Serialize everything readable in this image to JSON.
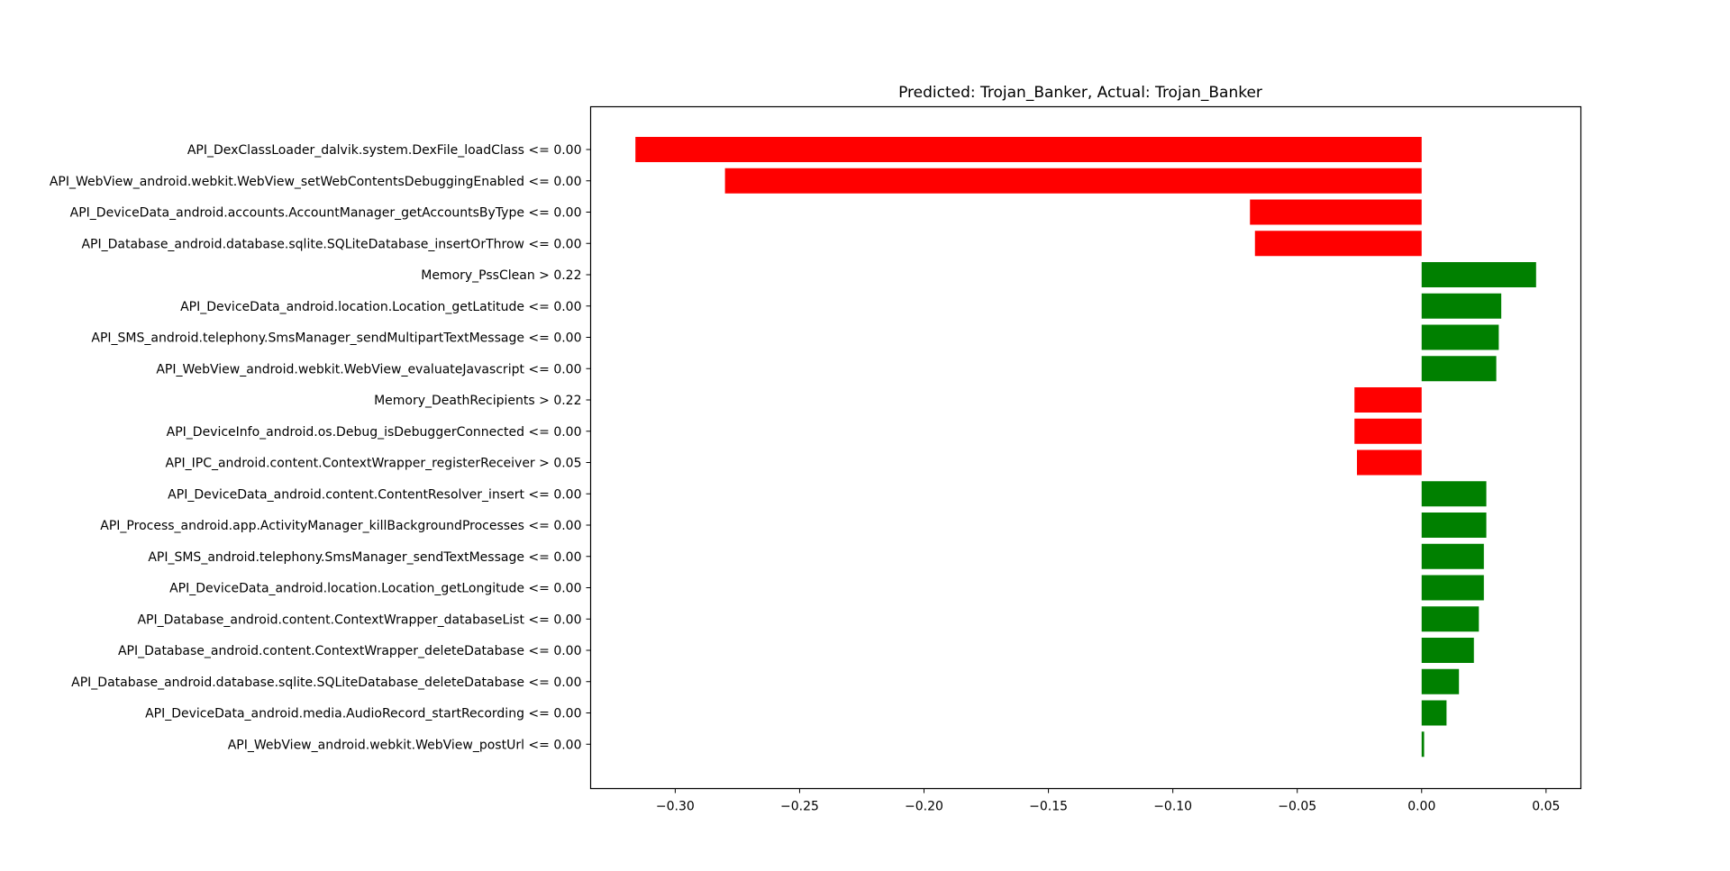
{
  "chart_data": {
    "type": "bar",
    "orientation": "horizontal",
    "title": "Predicted: Trojan_Banker, Actual: Trojan_Banker",
    "xlabel": "",
    "ylabel": "",
    "xlim": [
      -0.334,
      0.064
    ],
    "xticks": [
      -0.3,
      -0.25,
      -0.2,
      -0.15,
      -0.1,
      -0.05,
      0.0,
      0.05
    ],
    "xtick_labels": [
      "−0.30",
      "−0.25",
      "−0.20",
      "−0.15",
      "−0.10",
      "−0.05",
      "0.00",
      "0.05"
    ],
    "grid": false,
    "colors": {
      "positive": "#008000",
      "negative": "#ff0000"
    },
    "categories": [
      "API_DexClassLoader_dalvik.system.DexFile_loadClass <= 0.00",
      "API_WebView_android.webkit.WebView_setWebContentsDebuggingEnabled <= 0.00",
      "API_DeviceData_android.accounts.AccountManager_getAccountsByType <= 0.00",
      "API_Database_android.database.sqlite.SQLiteDatabase_insertOrThrow <= 0.00",
      "Memory_PssClean > 0.22",
      "API_DeviceData_android.location.Location_getLatitude <= 0.00",
      "API_SMS_android.telephony.SmsManager_sendMultipartTextMessage <= 0.00",
      "API_WebView_android.webkit.WebView_evaluateJavascript <= 0.00",
      "Memory_DeathRecipients > 0.22",
      "API_DeviceInfo_android.os.Debug_isDebuggerConnected <= 0.00",
      "API_IPC_android.content.ContextWrapper_registerReceiver > 0.05",
      "API_DeviceData_android.content.ContentResolver_insert <= 0.00",
      "API_Process_android.app.ActivityManager_killBackgroundProcesses <= 0.00",
      "API_SMS_android.telephony.SmsManager_sendTextMessage <= 0.00",
      "API_DeviceData_android.location.Location_getLongitude <= 0.00",
      "API_Database_android.content.ContextWrapper_databaseList <= 0.00",
      "API_Database_android.content.ContextWrapper_deleteDatabase <= 0.00",
      "API_Database_android.database.sqlite.SQLiteDatabase_deleteDatabase <= 0.00",
      "API_DeviceData_android.media.AudioRecord_startRecording <= 0.00",
      "API_WebView_android.webkit.WebView_postUrl <= 0.00"
    ],
    "values": [
      -0.316,
      -0.28,
      -0.069,
      -0.067,
      0.046,
      0.032,
      0.031,
      0.03,
      -0.027,
      -0.027,
      -0.026,
      0.026,
      0.026,
      0.025,
      0.025,
      0.023,
      0.021,
      0.015,
      0.01,
      0.001
    ]
  }
}
